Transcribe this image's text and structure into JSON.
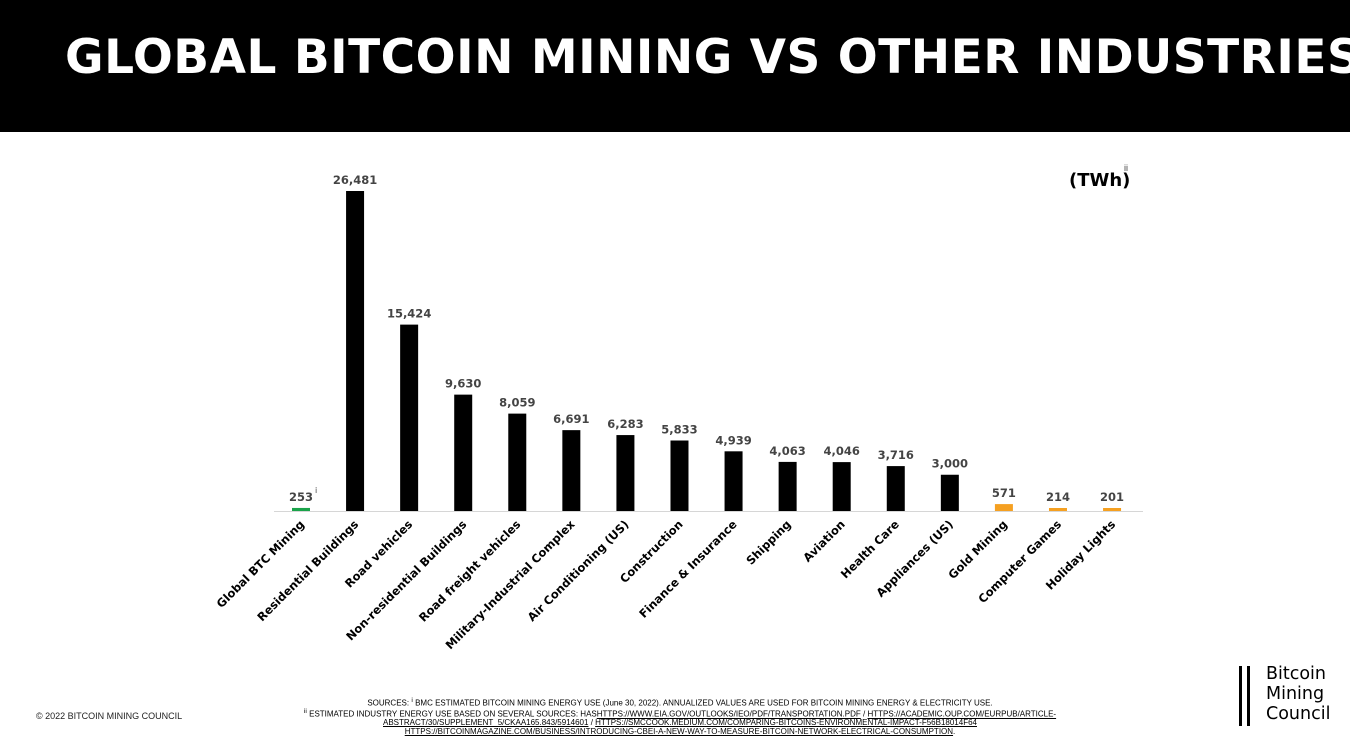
{
  "header": {
    "title": "GLOBAL BITCOIN MINING VS OTHER INDUSTRIES"
  },
  "unit_label": "(TWh)",
  "unit_note": "ii",
  "colors": {
    "green": "#1aa34a",
    "black": "#000000",
    "orange": "#f5a021"
  },
  "chart_data": {
    "type": "bar",
    "title": "GLOBAL BITCOIN MINING VS OTHER INDUSTRIES",
    "xlabel": "",
    "ylabel": "",
    "ylim": [
      0,
      26481
    ],
    "grid": false,
    "categories": [
      "Global BTC Mining",
      "Residential Buildings",
      "Road vehicles",
      "Non-residential Buildings",
      "Road freight vehicles",
      "Military-Industrial Complex",
      "Air Conditioning (US)",
      "Construction",
      "Finance & Insurance",
      "Shipping",
      "Aviation",
      "Health Care",
      "Appliances (US)",
      "Gold Mining",
      "Computer Games",
      "Holiday Lights"
    ],
    "values": [
      253,
      26481,
      15424,
      9630,
      8059,
      6691,
      6283,
      5833,
      4939,
      4063,
      4046,
      3716,
      3000,
      571,
      214,
      201
    ],
    "value_labels": [
      "253",
      "26,481",
      "15,424",
      "9,630",
      "8,059",
      "6,691",
      "6,283",
      "5,833",
      "4,939",
      "4,063",
      "4,046",
      "3,716",
      "3,000",
      "571",
      "214",
      "201"
    ],
    "bar_colors": [
      "green",
      "black",
      "black",
      "black",
      "black",
      "black",
      "black",
      "black",
      "black",
      "black",
      "black",
      "black",
      "black",
      "orange",
      "orange",
      "orange"
    ],
    "annotations": [
      {
        "category": "Global BTC Mining",
        "text": "i"
      }
    ]
  },
  "footer": {
    "copyright": "© 2022 BITCOIN MINING COUNCIL",
    "sources": {
      "line1_prefix": "SOURCES:",
      "line1_sup": "i",
      "line1_text": "BMC ESTIMATED BITCOIN MINING ENERGY USE (June 30, 2022). ANNUALIZED VALUES ARE USED FOR BITCOIN MINING ENERGY & ELECTRICITY USE.",
      "line2_sup": "ii",
      "line2_text": "ESTIMATED INDUSTRY ENERGY USE BASED ON SEVERAL SOURCES: HAS",
      "line2_link1": "HTTPS://WWW.EIA.GOV/OUTLOOKS/IEO/PDF/TRANSPORTATION.PDF",
      "line2_sep": "/",
      "line2_link2": "HTTPS://ACADEMIC.OUP.COM/EURPUB/ARTICLE-",
      "line3_link2_cont": "ABSTRACT/30/SUPPLEMENT_5/CKAA165.843/5914601",
      "line3_sep": "/",
      "line3_link3": "HTTPS://SMCCOOK.MEDIUM.COM/COMPARING-BITCOINS-ENVIRONMENTAL-IMPACT-F56B18014F64",
      "line4_link4": "HTTPS://BITCOINMAGAZINE.COM/BUSINESS/INTRODUCING-CBEI-A-NEW-WAY-TO-MEASURE-BITCOIN-NETWORK-ELECTRICAL-CONSUMPTION",
      "line4_end": "."
    },
    "logo": {
      "line1": "Bitcoin",
      "line2": "Mining",
      "line3": "Council"
    }
  }
}
